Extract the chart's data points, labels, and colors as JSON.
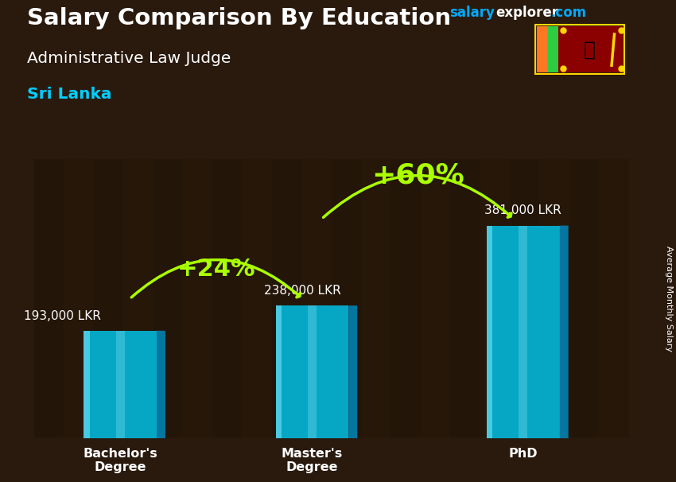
{
  "title_main": "Salary Comparison By Education",
  "title_sub": "Administrative Law Judge",
  "title_country": "Sri Lanka",
  "watermark_salary": "salary",
  "watermark_explorer": "explorer",
  "watermark_com": ".com",
  "ylabel": "Average Monthly Salary",
  "categories": [
    "Bachelor's\nDegree",
    "Master's\nDegree",
    "PhD"
  ],
  "values": [
    193000,
    238000,
    381000
  ],
  "value_labels": [
    "193,000 LKR",
    "238,000 LKR",
    "381,000 LKR"
  ],
  "pct_labels": [
    "+24%",
    "+60%"
  ],
  "bar_color_main": "#00c8f0",
  "bar_color_light": "#55dfff",
  "bar_color_dark": "#0088bb",
  "bar_alpha": 0.82,
  "arrow_color": "#aaff00",
  "bg_color": "#2a1a0e",
  "title_color": "#ffffff",
  "sub_title_color": "#ffffff",
  "country_color": "#00cfff",
  "value_label_color": "#ffffff",
  "pct_label_color": "#aaff00",
  "xlabel_color": "#ffffff",
  "watermark_salary_color": "#00aaff",
  "watermark_explorer_color": "#ffffff",
  "watermark_com_color": "#00aaff",
  "ylim": [
    0,
    500000
  ],
  "bar_width": 0.38,
  "x_positions": [
    1.0,
    2.0,
    3.1
  ]
}
